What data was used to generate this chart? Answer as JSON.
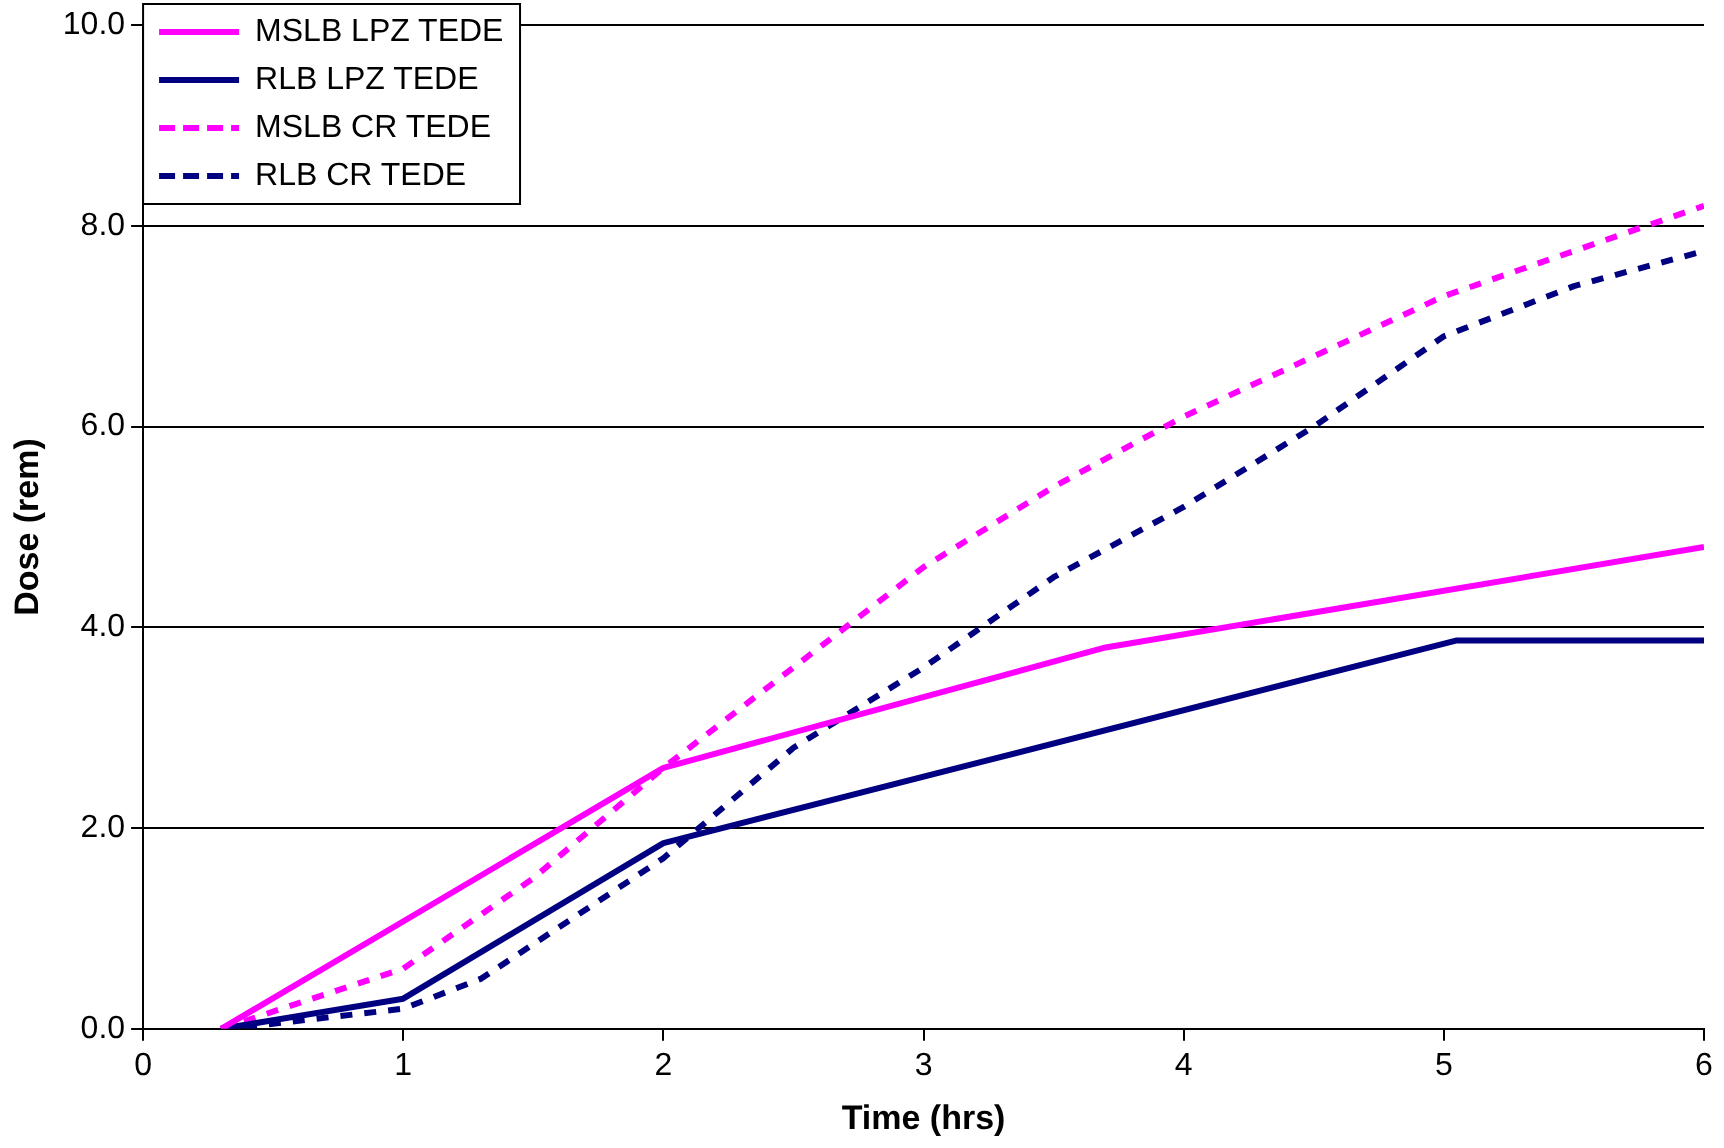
{
  "chart_data": {
    "type": "line",
    "xlabel": "Time (hrs)",
    "ylabel": "Dose (rem)",
    "xlim": [
      0,
      6
    ],
    "xticks": [
      0,
      1,
      2,
      3,
      4,
      5,
      6
    ],
    "ylim": [
      0,
      10
    ],
    "yticks": [
      {
        "value": 0,
        "label": "0.0"
      },
      {
        "value": 2,
        "label": "2.0"
      },
      {
        "value": 4,
        "label": "4.0"
      },
      {
        "value": 6,
        "label": "6.0"
      },
      {
        "value": 8,
        "label": "8.0"
      },
      {
        "value": 10,
        "label": "10.0"
      }
    ],
    "grid": "y",
    "legend": "top left",
    "marker": "none",
    "series": [
      {
        "name": "MSLB LPZ TEDE",
        "color": "#ff00ff",
        "line_style": "solid",
        "x": [
          0.3,
          2,
          3.7,
          6
        ],
        "values": [
          0,
          2.6,
          3.8,
          4.8
        ]
      },
      {
        "name": "RLB LPZ TEDE",
        "color": "#000080",
        "line_style": "solid",
        "x": [
          0.3,
          1,
          2,
          5.05,
          6
        ],
        "values": [
          0,
          0.3,
          1.85,
          3.87,
          3.87
        ]
      },
      {
        "name": "MSLB CR TEDE",
        "color": "#ff00ff",
        "line_style": "dashed",
        "x": [
          0.3,
          1,
          1.5,
          2,
          2.7,
          3,
          3.5,
          4,
          5,
          6
        ],
        "values": [
          0,
          0.6,
          1.5,
          2.6,
          4.0,
          4.6,
          5.4,
          6.1,
          7.3,
          8.2
        ]
      },
      {
        "name": "RLB CR TEDE",
        "color": "#000080",
        "line_style": "dashed",
        "x": [
          0.3,
          0.5,
          1,
          1.3,
          2,
          2.5,
          3,
          3.5,
          4,
          4.5,
          5,
          5.5,
          6
        ],
        "values": [
          0,
          0.05,
          0.2,
          0.5,
          1.7,
          2.8,
          3.6,
          4.5,
          5.2,
          6.0,
          6.9,
          7.4,
          7.75
        ]
      }
    ]
  }
}
